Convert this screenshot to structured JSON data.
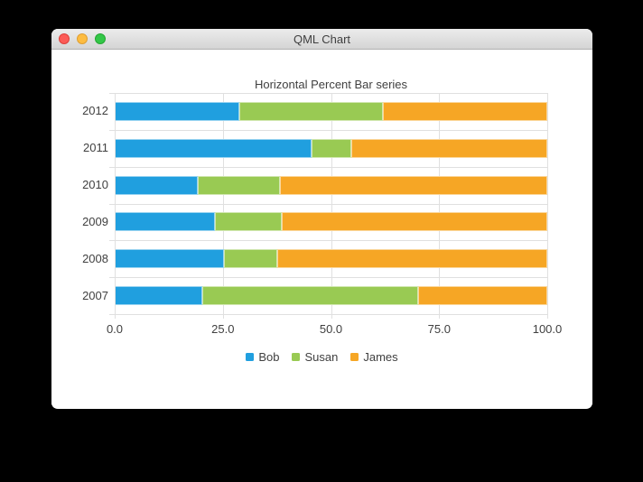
{
  "window": {
    "title": "QML Chart",
    "controls": {
      "close": "close",
      "minimize": "minimize",
      "zoom": "zoom"
    }
  },
  "colors": {
    "desktop_background": "#000000",
    "window_background": "#ffffff",
    "gridline": "#e0e0e0",
    "axis_text": "#404040",
    "series_bob": "#209fdf",
    "series_susan": "#99ca53",
    "series_james": "#f6a625"
  },
  "chart_data": {
    "type": "bar",
    "variant": "horizontal-percent-stacked",
    "title": "Horizontal Percent Bar series",
    "categories": [
      "2012",
      "2011",
      "2010",
      "2009",
      "2008",
      "2007"
    ],
    "series": [
      {
        "name": "Bob",
        "color": "#209fdf",
        "values": [
          6,
          5,
          4,
          3,
          2,
          2
        ]
      },
      {
        "name": "Susan",
        "color": "#99ca53",
        "values": [
          7,
          1,
          4,
          2,
          1,
          5
        ]
      },
      {
        "name": "James",
        "color": "#f6a625",
        "values": [
          8,
          5,
          13,
          8,
          5,
          3
        ]
      }
    ],
    "x_axis": {
      "ticks": [
        "0.0",
        "25.0",
        "50.0",
        "75.0",
        "100.0"
      ],
      "range": [
        0,
        100
      ],
      "grid": true
    },
    "y_axis": {
      "label_side": "left"
    },
    "legend": {
      "position": "bottom",
      "entries": [
        "Bob",
        "Susan",
        "James"
      ]
    }
  }
}
